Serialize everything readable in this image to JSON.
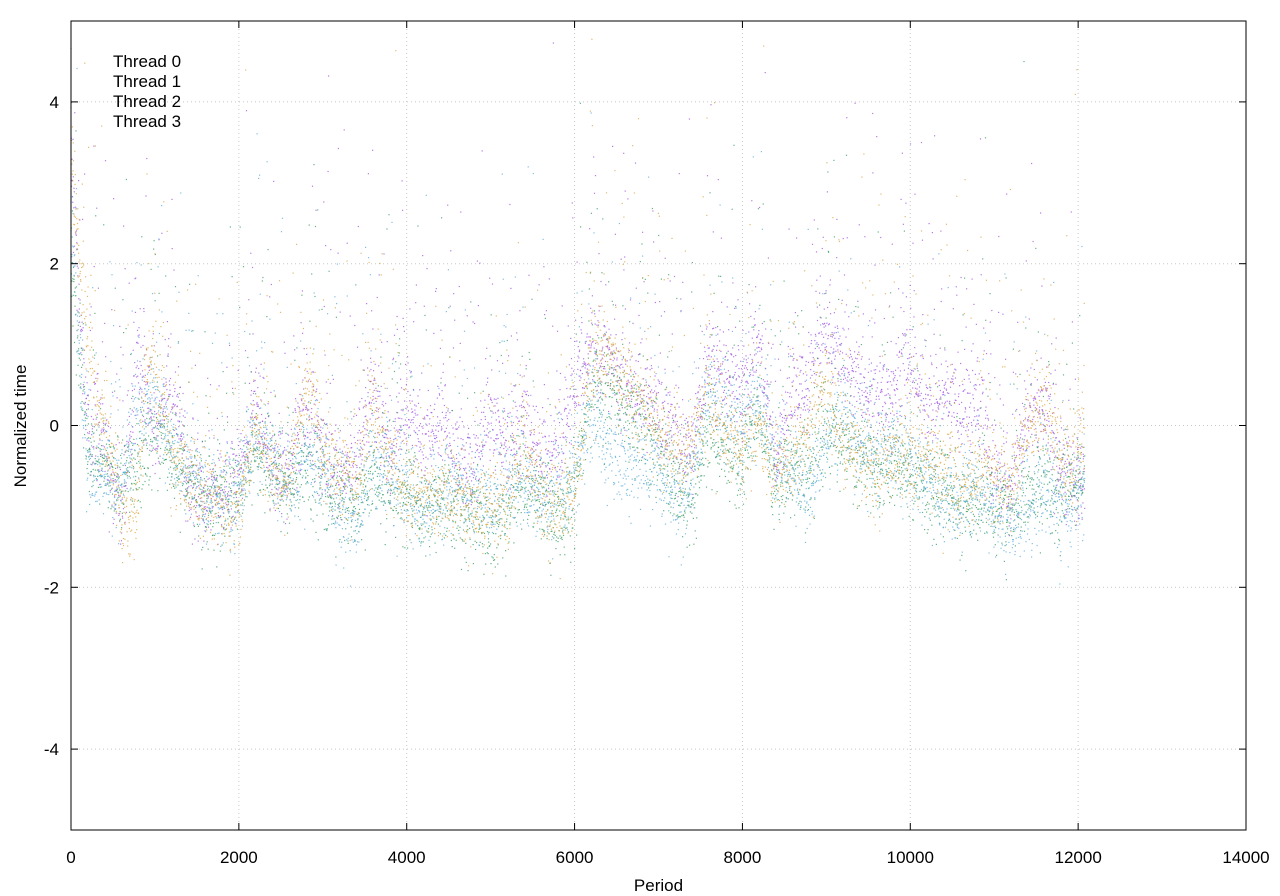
{
  "chart_data": {
    "type": "scatter",
    "title": "",
    "xlabel": "Period",
    "ylabel": "Normalized time",
    "xlim": [
      0,
      14000
    ],
    "ylim": [
      -5,
      5
    ],
    "xticks": [
      0,
      2000,
      4000,
      6000,
      8000,
      10000,
      12000,
      14000
    ],
    "yticks": [
      -4,
      -2,
      0,
      2,
      4
    ],
    "xtick_labels": [
      "0",
      "2000",
      "4000",
      "6000",
      "8000",
      "10000",
      "12000",
      "14000"
    ],
    "ytick_labels": [
      "-4",
      "-2",
      "0",
      "2",
      "4"
    ],
    "grid": true,
    "legend_position": "top-left",
    "series": [
      {
        "name": "Thread 0",
        "color": "#9e4de0",
        "profile": [
          [
            0,
            3.0
          ],
          [
            200,
            0.0
          ],
          [
            400,
            -0.3
          ],
          [
            600,
            -1.0
          ],
          [
            800,
            0.8
          ],
          [
            1000,
            -0.2
          ],
          [
            1200,
            0.6
          ],
          [
            1400,
            -0.8
          ],
          [
            1600,
            -0.9
          ],
          [
            1800,
            -0.8
          ],
          [
            2000,
            -0.6
          ],
          [
            2200,
            0.3
          ],
          [
            2400,
            -0.5
          ],
          [
            2600,
            -0.6
          ],
          [
            2800,
            0.2
          ],
          [
            3000,
            -0.3
          ],
          [
            3200,
            -0.6
          ],
          [
            3400,
            -0.4
          ],
          [
            3600,
            0.5
          ],
          [
            3800,
            -0.4
          ],
          [
            4000,
            0.3
          ],
          [
            4200,
            -0.2
          ],
          [
            4400,
            0.0
          ],
          [
            4600,
            -0.3
          ],
          [
            4800,
            -0.5
          ],
          [
            5000,
            0.1
          ],
          [
            5200,
            -0.2
          ],
          [
            5400,
            0.0
          ],
          [
            5600,
            -0.4
          ],
          [
            5800,
            -0.3
          ],
          [
            6000,
            0.5
          ],
          [
            6200,
            1.0
          ],
          [
            6400,
            0.8
          ],
          [
            6600,
            0.5
          ],
          [
            6800,
            0.4
          ],
          [
            7000,
            0.2
          ],
          [
            7200,
            0.0
          ],
          [
            7400,
            -0.4
          ],
          [
            7600,
            0.8
          ],
          [
            7800,
            0.6
          ],
          [
            8000,
            0.4
          ],
          [
            8200,
            1.0
          ],
          [
            8400,
            -0.4
          ],
          [
            8600,
            0.4
          ],
          [
            8800,
            0.6
          ],
          [
            9000,
            1.2
          ],
          [
            9200,
            0.8
          ],
          [
            9400,
            0.5
          ],
          [
            9600,
            0.3
          ],
          [
            9800,
            0.4
          ],
          [
            10000,
            0.8
          ],
          [
            10200,
            0.2
          ],
          [
            10400,
            0.4
          ],
          [
            10600,
            0.2
          ],
          [
            10800,
            0.3
          ],
          [
            11000,
            -0.5
          ],
          [
            11200,
            -0.8
          ],
          [
            11400,
            0.2
          ],
          [
            11600,
            0.2
          ],
          [
            11800,
            -0.6
          ],
          [
            12000,
            -0.7
          ],
          [
            12080,
            -0.8
          ]
        ]
      },
      {
        "name": "Thread 1",
        "color": "#2f9a5c",
        "profile": [
          [
            0,
            2.0
          ],
          [
            200,
            -0.3
          ],
          [
            400,
            -0.5
          ],
          [
            600,
            -0.8
          ],
          [
            800,
            -0.5
          ],
          [
            1000,
            0.0
          ],
          [
            1200,
            -0.4
          ],
          [
            1400,
            -0.7
          ],
          [
            1600,
            -1.0
          ],
          [
            1800,
            -0.9
          ],
          [
            2000,
            -0.8
          ],
          [
            2200,
            -0.3
          ],
          [
            2400,
            -0.6
          ],
          [
            2600,
            -0.8
          ],
          [
            2800,
            -0.5
          ],
          [
            3000,
            -0.8
          ],
          [
            3200,
            -0.9
          ],
          [
            3400,
            -1.0
          ],
          [
            3600,
            -0.6
          ],
          [
            3800,
            -0.8
          ],
          [
            4000,
            -0.9
          ],
          [
            4200,
            -1.0
          ],
          [
            4400,
            -0.9
          ],
          [
            4600,
            -1.1
          ],
          [
            4800,
            -1.1
          ],
          [
            5000,
            -1.3
          ],
          [
            5200,
            -1.0
          ],
          [
            5400,
            -0.7
          ],
          [
            5600,
            -1.0
          ],
          [
            5800,
            -1.2
          ],
          [
            6000,
            -0.9
          ],
          [
            6200,
            0.6
          ],
          [
            6400,
            0.4
          ],
          [
            6600,
            0.2
          ],
          [
            6800,
            0.0
          ],
          [
            7000,
            -0.3
          ],
          [
            7200,
            -0.7
          ],
          [
            7400,
            -1.0
          ],
          [
            7600,
            0.0
          ],
          [
            7800,
            -0.3
          ],
          [
            8000,
            -0.5
          ],
          [
            8200,
            0.2
          ],
          [
            8400,
            -0.8
          ],
          [
            8600,
            -0.6
          ],
          [
            8800,
            -0.6
          ],
          [
            9000,
            0.0
          ],
          [
            9200,
            -0.2
          ],
          [
            9400,
            -0.4
          ],
          [
            9600,
            -0.6
          ],
          [
            9800,
            -0.5
          ],
          [
            10000,
            -0.5
          ],
          [
            10200,
            -0.9
          ],
          [
            10400,
            -0.8
          ],
          [
            10600,
            -1.0
          ],
          [
            10800,
            -0.9
          ],
          [
            11000,
            -1.0
          ],
          [
            11200,
            -1.1
          ],
          [
            11400,
            -0.8
          ],
          [
            11600,
            -0.7
          ],
          [
            11800,
            -0.9
          ],
          [
            12000,
            -0.7
          ],
          [
            12080,
            -0.6
          ]
        ]
      },
      {
        "name": "Thread 2",
        "color": "#55a9dc",
        "profile": [
          [
            0,
            2.5
          ],
          [
            200,
            -0.5
          ],
          [
            400,
            -0.6
          ],
          [
            600,
            -0.7
          ],
          [
            800,
            0.2
          ],
          [
            1000,
            0.3
          ],
          [
            1200,
            -0.3
          ],
          [
            1400,
            -0.6
          ],
          [
            1600,
            -0.8
          ],
          [
            1800,
            -0.9
          ],
          [
            2000,
            -0.9
          ],
          [
            2200,
            0.0
          ],
          [
            2400,
            -0.5
          ],
          [
            2600,
            -0.7
          ],
          [
            2800,
            -0.4
          ],
          [
            3000,
            -0.6
          ],
          [
            3200,
            -1.1
          ],
          [
            3400,
            -1.3
          ],
          [
            3600,
            -0.5
          ],
          [
            3800,
            -0.6
          ],
          [
            4000,
            -0.8
          ],
          [
            4200,
            -1.1
          ],
          [
            4400,
            -0.9
          ],
          [
            4600,
            -0.7
          ],
          [
            4800,
            -0.8
          ],
          [
            5000,
            -1.0
          ],
          [
            5200,
            -0.6
          ],
          [
            5400,
            -0.7
          ],
          [
            5600,
            -1.0
          ],
          [
            5800,
            -0.9
          ],
          [
            6000,
            -0.6
          ],
          [
            6200,
            0.2
          ],
          [
            6400,
            -0.3
          ],
          [
            6600,
            -0.5
          ],
          [
            6800,
            -0.5
          ],
          [
            7000,
            -0.6
          ],
          [
            7200,
            -1.0
          ],
          [
            7400,
            -0.8
          ],
          [
            7600,
            0.4
          ],
          [
            7800,
            0.0
          ],
          [
            8000,
            0.0
          ],
          [
            8200,
            0.3
          ],
          [
            8400,
            -0.5
          ],
          [
            8600,
            -0.6
          ],
          [
            8800,
            -0.8
          ],
          [
            9000,
            -0.2
          ],
          [
            9200,
            0.0
          ],
          [
            9400,
            -0.2
          ],
          [
            9600,
            -0.4
          ],
          [
            9800,
            -0.3
          ],
          [
            10000,
            -0.4
          ],
          [
            10200,
            -0.7
          ],
          [
            10400,
            -0.9
          ],
          [
            10600,
            -1.0
          ],
          [
            10800,
            -0.8
          ],
          [
            11000,
            -1.0
          ],
          [
            11200,
            -1.2
          ],
          [
            11400,
            -1.0
          ],
          [
            11600,
            -0.8
          ],
          [
            11800,
            -1.0
          ],
          [
            12000,
            -0.9
          ],
          [
            12080,
            -0.9
          ]
        ]
      },
      {
        "name": "Thread 3",
        "color": "#d9a23a",
        "profile": [
          [
            0,
            3.5
          ],
          [
            100,
            2.0
          ],
          [
            200,
            1.0
          ],
          [
            300,
            0.2
          ],
          [
            450,
            -0.2
          ],
          [
            600,
            -1.1
          ],
          [
            700,
            -1.3
          ],
          [
            800,
            -0.9
          ],
          [
            900,
            0.8
          ],
          [
            1000,
            0.6
          ],
          [
            1100,
            0.3
          ],
          [
            1200,
            -0.3
          ],
          [
            1400,
            -0.6
          ],
          [
            1600,
            -0.9
          ],
          [
            1800,
            -1.0
          ],
          [
            2000,
            -1.0
          ],
          [
            2200,
            0.0
          ],
          [
            2400,
            -0.6
          ],
          [
            2600,
            -0.7
          ],
          [
            2800,
            0.5
          ],
          [
            3000,
            -0.4
          ],
          [
            3200,
            -0.6
          ],
          [
            3400,
            -0.8
          ],
          [
            3600,
            0.3
          ],
          [
            3800,
            -0.5
          ],
          [
            4000,
            -0.8
          ],
          [
            4200,
            -0.9
          ],
          [
            4400,
            -0.8
          ],
          [
            4600,
            -0.9
          ],
          [
            4800,
            -1.0
          ],
          [
            5000,
            -1.1
          ],
          [
            5200,
            -1.0
          ],
          [
            5400,
            -0.2
          ],
          [
            5600,
            -0.9
          ],
          [
            5800,
            -1.0
          ],
          [
            6000,
            -0.8
          ],
          [
            6200,
            0.7
          ],
          [
            6400,
            0.9
          ],
          [
            6600,
            0.6
          ],
          [
            6800,
            0.2
          ],
          [
            7000,
            0.0
          ],
          [
            7200,
            -0.4
          ],
          [
            7400,
            -0.3
          ],
          [
            7600,
            0.5
          ],
          [
            7800,
            -0.2
          ],
          [
            8000,
            -0.3
          ],
          [
            8200,
            0.0
          ],
          [
            8400,
            -0.8
          ],
          [
            8600,
            -0.3
          ],
          [
            8800,
            0.0
          ],
          [
            9000,
            0.5
          ],
          [
            9200,
            -0.2
          ],
          [
            9400,
            -0.4
          ],
          [
            9600,
            -0.6
          ],
          [
            9800,
            -0.4
          ],
          [
            10000,
            -0.3
          ],
          [
            10200,
            -0.4
          ],
          [
            10400,
            -0.5
          ],
          [
            10600,
            -0.7
          ],
          [
            10800,
            -0.7
          ],
          [
            11000,
            -0.6
          ],
          [
            11200,
            -0.8
          ],
          [
            11400,
            0.0
          ],
          [
            11600,
            0.4
          ],
          [
            11800,
            -0.4
          ],
          [
            12000,
            -0.5
          ],
          [
            12080,
            0.2
          ]
        ]
      }
    ]
  }
}
